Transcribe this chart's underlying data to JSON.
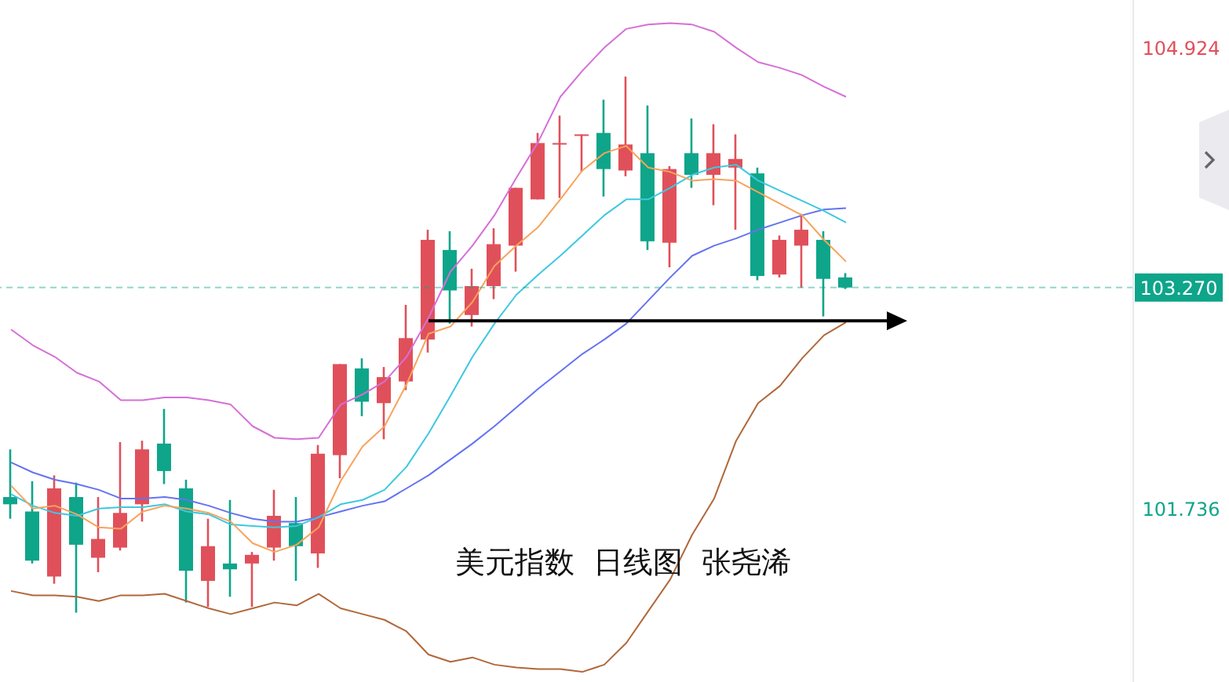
{
  "chart_data": {
    "type": "candlestick",
    "categories": [
      null,
      null,
      null,
      null,
      null,
      null,
      null,
      null,
      null,
      null,
      null,
      null,
      null,
      null,
      null,
      null,
      null,
      null,
      null,
      null,
      null,
      null,
      null,
      null,
      null,
      null,
      null,
      null,
      null,
      null,
      null,
      null,
      null,
      null,
      null,
      null,
      null,
      null,
      null
    ],
    "ohlc": [
      [
        101.82,
        102.15,
        101.67,
        101.77
      ],
      [
        101.72,
        101.93,
        101.36,
        101.38
      ],
      [
        101.27,
        101.97,
        101.22,
        101.88
      ],
      [
        101.82,
        101.92,
        101.02,
        101.49
      ],
      [
        101.4,
        101.82,
        101.3,
        101.53
      ],
      [
        101.47,
        102.2,
        101.45,
        101.71
      ],
      [
        101.77,
        102.21,
        101.65,
        102.15
      ],
      [
        102.19,
        102.43,
        101.91,
        102.0
      ],
      [
        101.88,
        101.94,
        101.09,
        101.31
      ],
      [
        101.24,
        101.67,
        101.06,
        101.48
      ],
      [
        101.36,
        101.8,
        101.13,
        101.32
      ],
      [
        101.36,
        101.44,
        101.06,
        101.42
      ],
      [
        101.47,
        101.87,
        101.38,
        101.69
      ],
      [
        101.64,
        101.82,
        101.24,
        101.48
      ],
      [
        101.43,
        102.18,
        101.33,
        102.12
      ],
      [
        102.11,
        102.74,
        101.95,
        102.74
      ],
      [
        102.71,
        102.78,
        102.38,
        102.48
      ],
      [
        102.47,
        102.72,
        102.22,
        102.65
      ],
      [
        102.62,
        103.15,
        102.56,
        102.92
      ],
      [
        102.91,
        103.67,
        102.82,
        103.6
      ],
      [
        103.53,
        103.66,
        103.02,
        103.25
      ],
      [
        103.08,
        103.4,
        103.0,
        103.28
      ],
      [
        103.28,
        103.68,
        103.19,
        103.57
      ],
      [
        103.56,
        103.96,
        103.38,
        103.96
      ],
      [
        103.88,
        104.34,
        103.88,
        104.27
      ],
      [
        104.26,
        104.46,
        103.89,
        104.27
      ],
      [
        104.32,
        104.33,
        104.07,
        104.33
      ],
      [
        104.34,
        104.57,
        103.9,
        104.09
      ],
      [
        104.08,
        104.73,
        104.04,
        104.26
      ],
      [
        104.2,
        104.53,
        103.53,
        103.59
      ],
      [
        103.58,
        104.11,
        103.41,
        104.09
      ],
      [
        104.2,
        104.44,
        103.96,
        104.05
      ],
      [
        104.05,
        104.4,
        103.84,
        104.2
      ],
      [
        104.1,
        104.33,
        103.67,
        104.16
      ],
      [
        104.06,
        104.1,
        103.32,
        103.35
      ],
      [
        103.36,
        103.63,
        103.34,
        103.6
      ],
      [
        103.56,
        103.78,
        103.27,
        103.67
      ],
      [
        103.6,
        103.66,
        103.07,
        103.33
      ],
      [
        103.34,
        103.37,
        103.26,
        103.27
      ]
    ],
    "colors": [
      "#0ea58a",
      "#0ea58a",
      "#e0505a",
      "#0ea58a",
      "#e0505a",
      "#e0505a",
      "#e0505a",
      "#0ea58a",
      "#0ea58a",
      "#e0505a",
      "#0ea58a",
      "#e0505a",
      "#e0505a",
      "#0ea58a",
      "#e0505a",
      "#e0505a",
      "#0ea58a",
      "#e0505a",
      "#e0505a",
      "#e0505a",
      "#0ea58a",
      "#e0505a",
      "#e0505a",
      "#e0505a",
      "#e0505a",
      "#e0505a",
      "#e0505a",
      "#0ea58a",
      "#e0505a",
      "#0ea58a",
      "#e0505a",
      "#0ea58a",
      "#e0505a",
      "#e0505a",
      "#0ea58a",
      "#e0505a",
      "#e0505a",
      "#0ea58a",
      "#0ea58a"
    ],
    "series": [
      {
        "type": "line",
        "color": "#d66fd6",
        "values": [
          102.98,
          102.87,
          102.79,
          102.68,
          102.62,
          102.49,
          102.49,
          102.51,
          102.51,
          102.49,
          102.46,
          102.31,
          102.23,
          102.22,
          102.23,
          102.46,
          102.53,
          102.62,
          102.79,
          103.06,
          103.38,
          103.56,
          103.77,
          104.03,
          104.28,
          104.59,
          104.77,
          104.93,
          105.06,
          105.09,
          105.1,
          105.09,
          105.04,
          104.93,
          104.83,
          104.79,
          104.74,
          104.66,
          104.59
        ]
      },
      {
        "type": "line",
        "color": "#b0683a",
        "values": [
          101.17,
          101.14,
          101.14,
          101.13,
          101.1,
          101.14,
          101.14,
          101.15,
          101.1,
          101.05,
          101.01,
          101.05,
          101.09,
          101.07,
          101.15,
          101.05,
          101.01,
          100.97,
          100.89,
          100.73,
          100.68,
          100.71,
          100.66,
          100.64,
          100.63,
          100.63,
          100.61,
          100.66,
          100.81,
          101.03,
          101.25,
          101.56,
          101.81,
          102.21,
          102.47,
          102.59,
          102.78,
          102.94,
          103.03
        ]
      },
      {
        "type": "line",
        "color": "#6473f0",
        "values": [
          102.06,
          101.99,
          101.94,
          101.91,
          101.87,
          101.81,
          101.81,
          101.82,
          101.8,
          101.76,
          101.71,
          101.67,
          101.65,
          101.65,
          101.68,
          101.72,
          101.76,
          101.79,
          101.88,
          101.97,
          102.08,
          102.19,
          102.31,
          102.44,
          102.57,
          102.69,
          102.81,
          102.91,
          103.02,
          103.18,
          103.34,
          103.49,
          103.56,
          103.61,
          103.67,
          103.72,
          103.77,
          103.81,
          103.82
        ]
      },
      {
        "type": "line",
        "color": "#3ec8e0",
        "values": [
          101.84,
          101.76,
          101.71,
          101.69,
          101.74,
          101.75,
          101.75,
          101.77,
          101.72,
          101.7,
          101.63,
          101.62,
          101.61,
          101.62,
          101.68,
          101.77,
          101.8,
          101.87,
          102.03,
          102.26,
          102.52,
          102.79,
          103.02,
          103.22,
          103.36,
          103.49,
          103.63,
          103.77,
          103.88,
          103.88,
          103.96,
          104.05,
          104.1,
          104.12,
          104.01,
          103.94,
          103.87,
          103.8,
          103.72
        ]
      },
      {
        "type": "line",
        "color": "#f7a35c",
        "values": [
          101.9,
          101.74,
          101.76,
          101.7,
          101.61,
          101.6,
          101.72,
          101.76,
          101.74,
          101.71,
          101.65,
          101.5,
          101.44,
          101.49,
          101.61,
          101.93,
          102.17,
          102.31,
          102.6,
          102.95,
          103.0,
          103.17,
          103.42,
          103.56,
          103.69,
          103.88,
          104.08,
          104.2,
          104.25,
          104.1,
          104.07,
          104.01,
          104.02,
          104.01,
          103.93,
          103.85,
          103.77,
          103.6,
          103.45
        ]
      },
      {
        "type": "line",
        "color": "#000000",
        "values": [
          null,
          null,
          null,
          null,
          null,
          null,
          null,
          null,
          null,
          null,
          null,
          null,
          null,
          null,
          null,
          null,
          null,
          null,
          null,
          103.04,
          103.04,
          103.04,
          103.04,
          103.04,
          103.04,
          103.04,
          103.04,
          103.04,
          103.04,
          103.04,
          103.04,
          103.04,
          103.04,
          103.04,
          103.04,
          103.04,
          103.04,
          103.04,
          103.04
        ]
      }
    ],
    "ylim": [
      100.54,
      105.26
    ],
    "yticks": [
      104.924,
      101.736
    ],
    "ref_lines": [
      {
        "axis": "y",
        "value": 103.27,
        "label": "103.270",
        "color": "#0ea58a",
        "line_style": "dashed"
      }
    ],
    "tick_labels": "y",
    "grid": false,
    "legend": false,
    "annotations": [
      "美元指数  日线图  张尧浠"
    ]
  }
}
